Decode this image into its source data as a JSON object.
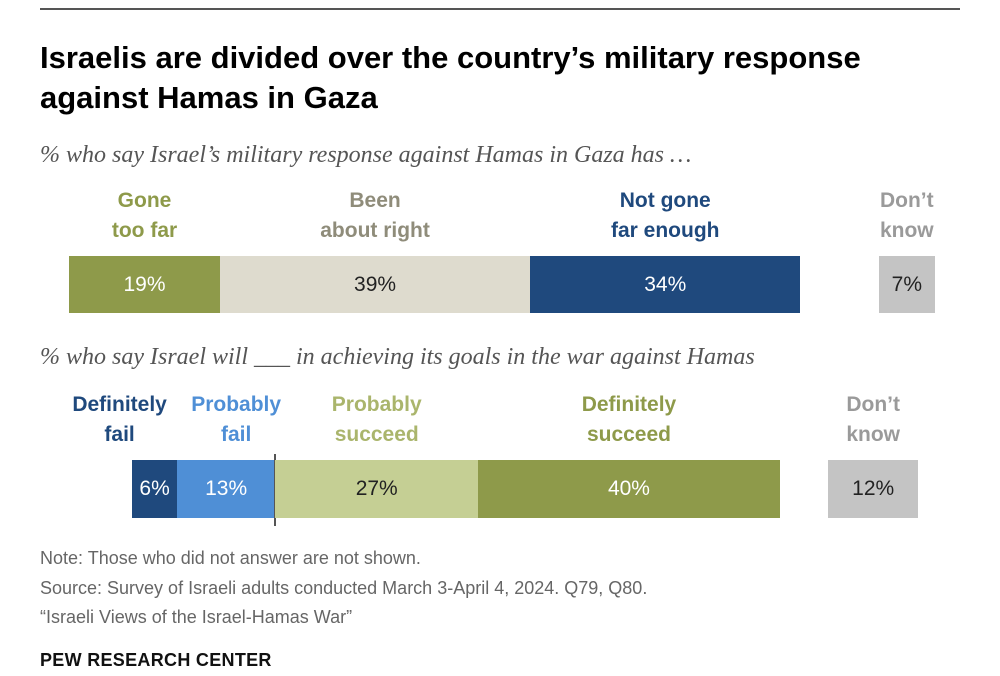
{
  "header": {
    "title": "Israelis are divided over the country’s military response against Hamas in Gaza"
  },
  "chart_data": [
    {
      "type": "bar",
      "orientation": "horizontal-stacked",
      "subtitle": "% who say Israel’s military response against Hamas in Gaza has …",
      "categories": [
        "Gone\ntoo far",
        "Been\nabout right",
        "Not gone\nfar enough",
        "Don’t\nknow"
      ],
      "values": [
        19,
        39,
        34,
        7
      ],
      "value_labels": [
        "19%",
        "39%",
        "34%",
        "7%"
      ],
      "colors": [
        "#8e9a4a",
        "#dedbce",
        "#1f497d",
        "#c4c4c4"
      ],
      "label_colors": [
        "#8e9a4a",
        "#8f8c7a",
        "#1f497d",
        "#9a9a9a"
      ],
      "value_text_colors": [
        "#ffffff",
        "#222222",
        "#ffffff",
        "#222222"
      ],
      "separate_last": true
    },
    {
      "type": "bar",
      "orientation": "horizontal-stacked",
      "subtitle": "% who say Israel will ___ in achieving its goals in the war against Hamas",
      "categories": [
        "Definitely\nfail",
        "Probably\nfail",
        "Probably\nsucceed",
        "Definitely\nsucceed",
        "Don’t\nknow"
      ],
      "values": [
        6,
        13,
        27,
        40,
        12
      ],
      "value_labels": [
        "6%",
        "13%",
        "27%",
        "40%",
        "12%"
      ],
      "colors": [
        "#1f497d",
        "#4f8fd6",
        "#c5cf94",
        "#8e9a4a",
        "#c4c4c4"
      ],
      "label_colors": [
        "#1f497d",
        "#4f8fd6",
        "#aab56c",
        "#8e9a4a",
        "#9a9a9a"
      ],
      "value_text_colors": [
        "#ffffff",
        "#ffffff",
        "#222222",
        "#ffffff",
        "#222222"
      ],
      "separate_last": true,
      "divider_after_index": 1
    }
  ],
  "footer": {
    "note": "Note: Those who did not answer are not shown.",
    "source": "Source: Survey of Israeli adults conducted March 3-April 4, 2024. Q79, Q80.",
    "report": "“Israeli Views of the Israel-Hamas War”",
    "brand": "PEW RESEARCH CENTER"
  }
}
